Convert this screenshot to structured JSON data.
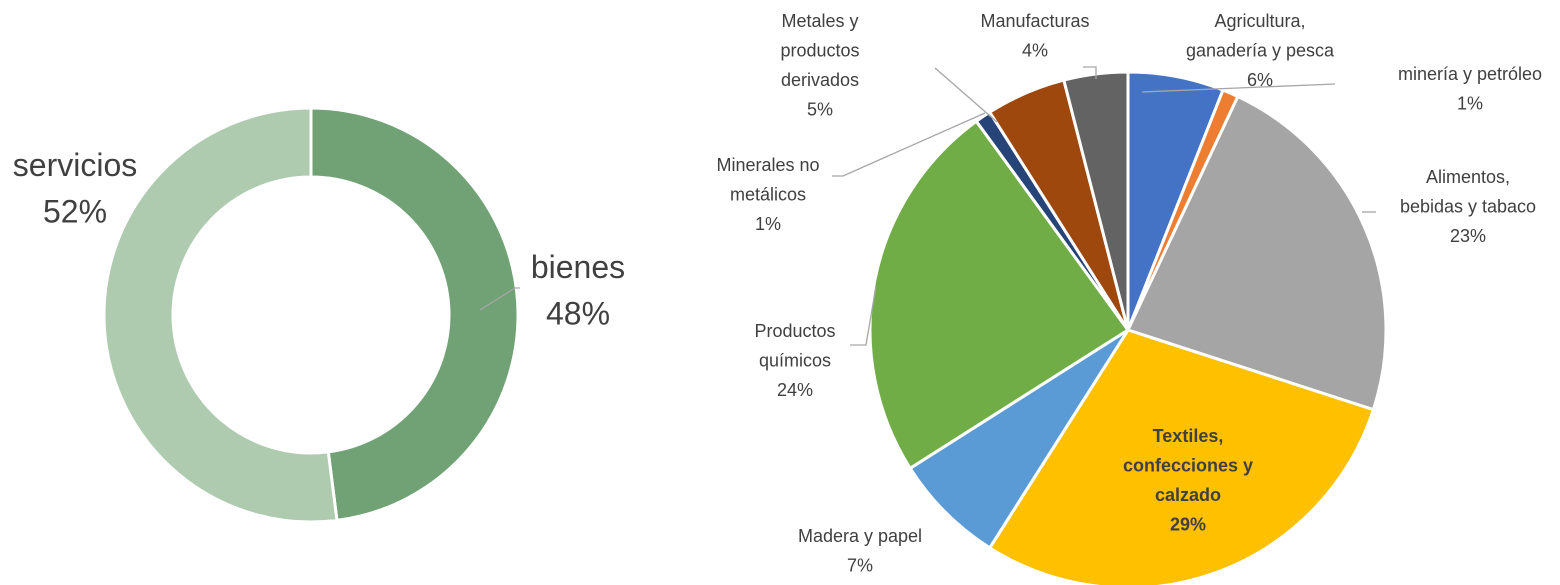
{
  "chart_data": [
    {
      "type": "donut",
      "categories": [
        "bienes",
        "servicios"
      ],
      "values": [
        48,
        52
      ],
      "value_labels": [
        "48%",
        "52%"
      ],
      "colors": [
        "#70a275",
        "#aecbb0"
      ]
    },
    {
      "type": "pie",
      "categories": [
        "Agricultura,\nganadería y pesca",
        "minería y petróleo",
        "Alimentos,\nbebidas y tabaco",
        "Textiles,\nconfecciones y\ncalzado",
        "Madera y papel",
        "Productos\nquímicos",
        "Minerales no\nmetálicos",
        "Metales y\nproductos\nderivados",
        "Manufacturas"
      ],
      "values": [
        6,
        1,
        23,
        29,
        7,
        24,
        1,
        5,
        4
      ],
      "value_labels": [
        "6%",
        "1%",
        "23%",
        "29%",
        "7%",
        "24%",
        "1%",
        "5%",
        "4%"
      ],
      "colors": [
        "#4472c4",
        "#ed7d31",
        "#a5a5a5",
        "#ffc000",
        "#5b9bd5",
        "#70ad47",
        "#264478",
        "#9e480e",
        "#636363"
      ]
    }
  ]
}
